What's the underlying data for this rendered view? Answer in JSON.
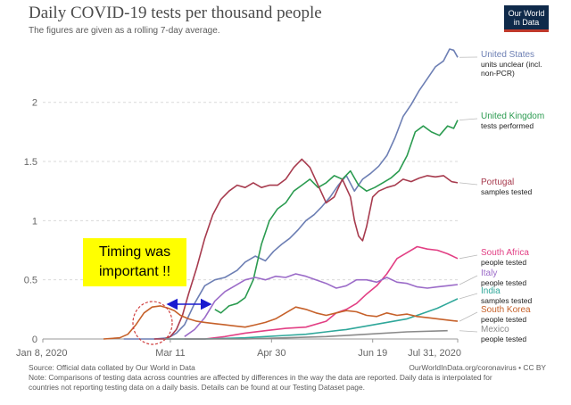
{
  "header": {
    "title": "Daily COVID-19 tests per thousand people",
    "subtitle": "The figures are given as a rolling 7-day average.",
    "logo_line1": "Our World",
    "logo_line2": "in Data"
  },
  "footer": {
    "source": "Source: Official data collated by Our World in Data",
    "url": "OurWorldInData.org/coronavirus • CC BY",
    "note1": "Note: Comparisons of testing data across countries are affected by differences in the way the data are reported. Daily data is interpolated for",
    "note2": "countries not reporting testing data on a daily basis. Details can be found at our Testing Dataset page."
  },
  "annotation": {
    "text_line1": "Timing was",
    "text_line2": "important !!",
    "box_color": "#ffff00",
    "arrow_color": "#1a1ad0",
    "circle_color": "#d04040"
  },
  "chart_data": {
    "type": "line",
    "x_ticks": [
      "Jan 8, 2020",
      "Mar 11",
      "Apr 30",
      "Jun 19",
      "Jul 31, 2020"
    ],
    "x_tick_days": [
      0,
      63,
      113,
      163,
      205
    ],
    "y_ticks": [
      "0",
      "0.5",
      "1",
      "1.5",
      "2"
    ],
    "ylim": [
      0,
      2.45
    ],
    "xlim": [
      0,
      205
    ],
    "grid": "horizontal-dotted",
    "series": [
      {
        "name": "United States",
        "sub": "units unclear (incl. non-PCR)",
        "color": "#6d7fb4",
        "x": [
          40,
          55,
          62,
          66,
          70,
          75,
          80,
          85,
          90,
          96,
          100,
          105,
          110,
          114,
          118,
          122,
          126,
          130,
          134,
          138,
          142,
          146,
          150,
          154,
          158,
          162,
          166,
          170,
          174,
          178,
          182,
          186,
          190,
          194,
          198,
          201,
          203,
          205
        ],
        "y": [
          0,
          0,
          0.01,
          0.05,
          0.12,
          0.3,
          0.45,
          0.5,
          0.52,
          0.58,
          0.65,
          0.7,
          0.66,
          0.74,
          0.8,
          0.85,
          0.92,
          1.0,
          1.05,
          1.12,
          1.2,
          1.3,
          1.38,
          1.25,
          1.35,
          1.4,
          1.46,
          1.55,
          1.7,
          1.88,
          1.98,
          2.1,
          2.2,
          2.3,
          2.35,
          2.45,
          2.44,
          2.38
        ]
      },
      {
        "name": "United Kingdom",
        "sub": "tests performed",
        "color": "#2b9b50",
        "x": [
          85,
          88,
          92,
          96,
          100,
          104,
          108,
          112,
          116,
          120,
          124,
          128,
          132,
          136,
          140,
          144,
          148,
          152,
          156,
          160,
          164,
          168,
          172,
          176,
          180,
          184,
          188,
          192,
          196,
          200,
          203,
          205
        ],
        "y": [
          0.25,
          0.22,
          0.28,
          0.3,
          0.35,
          0.5,
          0.8,
          1.0,
          1.1,
          1.15,
          1.25,
          1.3,
          1.35,
          1.28,
          1.32,
          1.38,
          1.35,
          1.42,
          1.3,
          1.25,
          1.28,
          1.32,
          1.36,
          1.42,
          1.55,
          1.75,
          1.8,
          1.75,
          1.72,
          1.8,
          1.78,
          1.85
        ]
      },
      {
        "name": "Portugal",
        "sub": "samples tested",
        "color": "#a73b4e",
        "x": [
          55,
          60,
          63,
          66,
          69,
          72,
          76,
          80,
          84,
          88,
          92,
          96,
          100,
          104,
          108,
          112,
          116,
          120,
          124,
          128,
          132,
          136,
          140,
          144,
          148,
          152,
          154,
          156,
          158,
          160,
          163,
          166,
          170,
          174,
          178,
          182,
          186,
          190,
          194,
          198,
          202,
          205
        ],
        "y": [
          0,
          0,
          0.02,
          0.08,
          0.2,
          0.38,
          0.6,
          0.85,
          1.05,
          1.18,
          1.25,
          1.3,
          1.28,
          1.32,
          1.28,
          1.3,
          1.3,
          1.35,
          1.45,
          1.52,
          1.45,
          1.3,
          1.15,
          1.2,
          1.35,
          1.2,
          1.0,
          0.87,
          0.83,
          0.95,
          1.2,
          1.25,
          1.28,
          1.3,
          1.35,
          1.33,
          1.36,
          1.38,
          1.37,
          1.38,
          1.33,
          1.32
        ]
      },
      {
        "name": "South Africa",
        "sub": "people tested",
        "color": "#e23f84",
        "x": [
          70,
          80,
          90,
          100,
          110,
          120,
          130,
          140,
          145,
          150,
          155,
          160,
          165,
          170,
          175,
          180,
          185,
          190,
          195,
          200,
          205
        ],
        "y": [
          0,
          0,
          0.02,
          0.05,
          0.07,
          0.09,
          0.1,
          0.15,
          0.22,
          0.25,
          0.3,
          0.38,
          0.45,
          0.55,
          0.68,
          0.73,
          0.78,
          0.76,
          0.75,
          0.72,
          0.68
        ]
      },
      {
        "name": "Italy",
        "sub": "people tested",
        "color": "#9b6bc8",
        "x": [
          70,
          75,
          80,
          85,
          90,
          95,
          100,
          105,
          110,
          115,
          120,
          125,
          130,
          135,
          140,
          145,
          150,
          155,
          160,
          165,
          170,
          175,
          180,
          185,
          190,
          195,
          200,
          205
        ],
        "y": [
          0.02,
          0.08,
          0.18,
          0.32,
          0.4,
          0.45,
          0.5,
          0.52,
          0.5,
          0.53,
          0.52,
          0.55,
          0.53,
          0.5,
          0.47,
          0.43,
          0.45,
          0.5,
          0.5,
          0.48,
          0.52,
          0.48,
          0.47,
          0.44,
          0.43,
          0.44,
          0.45,
          0.46
        ]
      },
      {
        "name": "India",
        "sub": "samples tested",
        "color": "#2fa79a",
        "x": [
          60,
          80,
          100,
          110,
          120,
          130,
          140,
          150,
          160,
          170,
          180,
          185,
          190,
          195,
          200,
          205
        ],
        "y": [
          0,
          0,
          0.01,
          0.02,
          0.03,
          0.04,
          0.06,
          0.08,
          0.11,
          0.14,
          0.17,
          0.2,
          0.23,
          0.26,
          0.3,
          0.34
        ]
      },
      {
        "name": "South Korea",
        "sub": "people tested",
        "color": "#c6612a",
        "x": [
          30,
          38,
          42,
          46,
          50,
          54,
          58,
          62,
          65,
          68,
          72,
          76,
          80,
          85,
          90,
          95,
          100,
          105,
          110,
          115,
          120,
          125,
          130,
          135,
          140,
          145,
          150,
          155,
          160,
          165,
          170,
          175,
          180,
          185,
          190,
          195,
          200,
          205
        ],
        "y": [
          0,
          0.01,
          0.04,
          0.12,
          0.22,
          0.27,
          0.28,
          0.26,
          0.24,
          0.2,
          0.17,
          0.15,
          0.14,
          0.13,
          0.12,
          0.11,
          0.1,
          0.12,
          0.14,
          0.17,
          0.22,
          0.27,
          0.25,
          0.22,
          0.2,
          0.22,
          0.24,
          0.23,
          0.2,
          0.19,
          0.22,
          0.2,
          0.21,
          0.19,
          0.18,
          0.17,
          0.16,
          0.15
        ]
      },
      {
        "name": "Mexico",
        "sub": "people tested",
        "color": "#8a8a8a",
        "x": [
          60,
          100,
          120,
          140,
          160,
          180,
          200
        ],
        "y": [
          0,
          0,
          0.01,
          0.02,
          0.04,
          0.06,
          0.07
        ]
      }
    ]
  }
}
